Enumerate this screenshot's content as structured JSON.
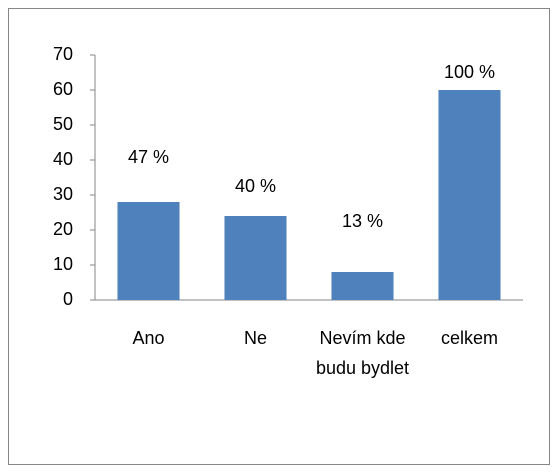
{
  "chart_data": {
    "type": "bar",
    "categories": [
      "Ano",
      "Ne",
      "Nevím kde budu bydlet",
      "celkem"
    ],
    "values": [
      28,
      24,
      8,
      60
    ],
    "annotations": [
      "47 %",
      "40 %",
      "13 %",
      "100 %"
    ],
    "color": "#4f81bd",
    "ylim": [
      0,
      70
    ],
    "yticks": [
      0,
      10,
      20,
      30,
      40,
      50,
      60,
      70
    ],
    "grid": false
  }
}
